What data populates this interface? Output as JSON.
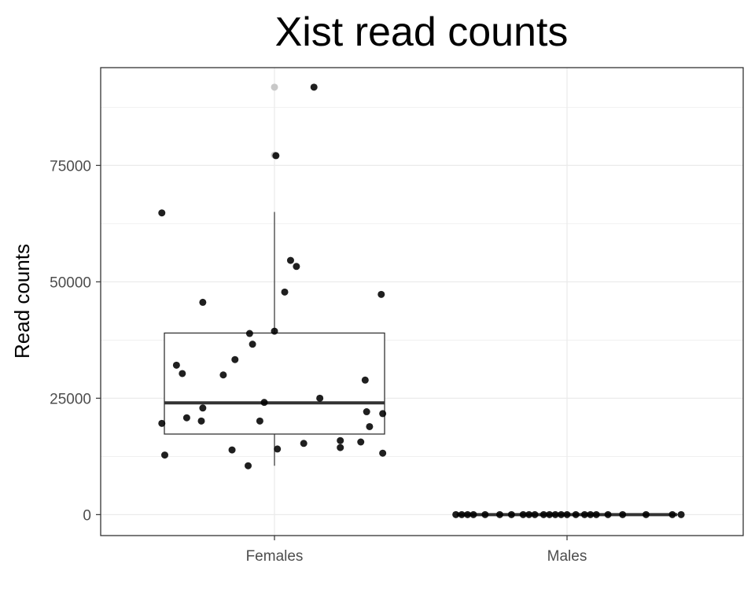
{
  "chart_data": {
    "type": "boxplot",
    "title": "Xist read counts",
    "xlabel": "",
    "ylabel": "Read counts",
    "categories": [
      "Females",
      "Males"
    ],
    "yticks": [
      0,
      25000,
      50000,
      75000
    ],
    "ytick_labels": [
      "0",
      "25000",
      "50000",
      "75000"
    ],
    "ylim": [
      -4500,
      96000
    ],
    "grid": true,
    "legend": "none",
    "colors": {
      "background": "#ffffff",
      "grid": "#ebebeb",
      "border": "#333333",
      "box": "#333333",
      "point": "#000000"
    },
    "boxes": [
      {
        "category": "Females",
        "q1": 17300,
        "median": 24000,
        "q3": 39000,
        "whisker_low": 10500,
        "whisker_high": 65000,
        "outliers": [
          77200,
          91800
        ]
      },
      {
        "category": "Males",
        "q1": 0,
        "median": 0,
        "q3": 50,
        "whisker_low": 0,
        "whisker_high": 80,
        "outliers": []
      }
    ],
    "points": [
      {
        "category": "Females",
        "jitter": -0.385,
        "value": 64800
      },
      {
        "category": "Females",
        "jitter": 0.135,
        "value": 91800
      },
      {
        "category": "Females",
        "jitter": 0.005,
        "value": 77100
      },
      {
        "category": "Females",
        "jitter": 0.055,
        "value": 54600
      },
      {
        "category": "Females",
        "jitter": 0.075,
        "value": 53300
      },
      {
        "category": "Females",
        "jitter": 0.035,
        "value": 47800
      },
      {
        "category": "Females",
        "jitter": 0.365,
        "value": 47300
      },
      {
        "category": "Females",
        "jitter": -0.245,
        "value": 45600
      },
      {
        "category": "Females",
        "jitter": 0.0,
        "value": 39400
      },
      {
        "category": "Females",
        "jitter": -0.085,
        "value": 38900
      },
      {
        "category": "Females",
        "jitter": -0.075,
        "value": 36600
      },
      {
        "category": "Females",
        "jitter": -0.135,
        "value": 33300
      },
      {
        "category": "Females",
        "jitter": -0.335,
        "value": 32100
      },
      {
        "category": "Females",
        "jitter": -0.315,
        "value": 30300
      },
      {
        "category": "Females",
        "jitter": -0.175,
        "value": 30000
      },
      {
        "category": "Females",
        "jitter": 0.31,
        "value": 28900
      },
      {
        "category": "Females",
        "jitter": 0.155,
        "value": 25000
      },
      {
        "category": "Females",
        "jitter": -0.035,
        "value": 24100
      },
      {
        "category": "Females",
        "jitter": -0.245,
        "value": 22900
      },
      {
        "category": "Females",
        "jitter": 0.315,
        "value": 22100
      },
      {
        "category": "Females",
        "jitter": 0.37,
        "value": 21700
      },
      {
        "category": "Females",
        "jitter": -0.3,
        "value": 20800
      },
      {
        "category": "Females",
        "jitter": -0.25,
        "value": 20100
      },
      {
        "category": "Females",
        "jitter": -0.05,
        "value": 20100
      },
      {
        "category": "Females",
        "jitter": -0.385,
        "value": 19600
      },
      {
        "category": "Females",
        "jitter": 0.325,
        "value": 18900
      },
      {
        "category": "Females",
        "jitter": 0.225,
        "value": 15900
      },
      {
        "category": "Females",
        "jitter": 0.295,
        "value": 15600
      },
      {
        "category": "Females",
        "jitter": 0.1,
        "value": 15300
      },
      {
        "category": "Females",
        "jitter": 0.225,
        "value": 14400
      },
      {
        "category": "Females",
        "jitter": 0.01,
        "value": 14100
      },
      {
        "category": "Females",
        "jitter": -0.145,
        "value": 13900
      },
      {
        "category": "Females",
        "jitter": 0.37,
        "value": 13200
      },
      {
        "category": "Females",
        "jitter": -0.375,
        "value": 12800
      },
      {
        "category": "Females",
        "jitter": -0.09,
        "value": 10500
      },
      {
        "category": "Males",
        "jitter": -0.38,
        "value": 0
      },
      {
        "category": "Males",
        "jitter": -0.36,
        "value": 0
      },
      {
        "category": "Males",
        "jitter": -0.34,
        "value": 0
      },
      {
        "category": "Males",
        "jitter": -0.32,
        "value": 0
      },
      {
        "category": "Males",
        "jitter": -0.28,
        "value": 0
      },
      {
        "category": "Males",
        "jitter": -0.23,
        "value": 0
      },
      {
        "category": "Males",
        "jitter": -0.19,
        "value": 0
      },
      {
        "category": "Males",
        "jitter": -0.15,
        "value": 0
      },
      {
        "category": "Males",
        "jitter": -0.13,
        "value": 0
      },
      {
        "category": "Males",
        "jitter": -0.11,
        "value": 0
      },
      {
        "category": "Males",
        "jitter": -0.08,
        "value": 0
      },
      {
        "category": "Males",
        "jitter": -0.06,
        "value": 0
      },
      {
        "category": "Males",
        "jitter": -0.04,
        "value": 0
      },
      {
        "category": "Males",
        "jitter": -0.02,
        "value": 0
      },
      {
        "category": "Males",
        "jitter": 0.0,
        "value": 0
      },
      {
        "category": "Males",
        "jitter": 0.03,
        "value": 0
      },
      {
        "category": "Males",
        "jitter": 0.06,
        "value": 0
      },
      {
        "category": "Males",
        "jitter": 0.08,
        "value": 0
      },
      {
        "category": "Males",
        "jitter": 0.1,
        "value": 0
      },
      {
        "category": "Males",
        "jitter": 0.14,
        "value": 0
      },
      {
        "category": "Males",
        "jitter": 0.19,
        "value": 0
      },
      {
        "category": "Males",
        "jitter": 0.27,
        "value": 0
      },
      {
        "category": "Males",
        "jitter": 0.36,
        "value": 0
      },
      {
        "category": "Males",
        "jitter": 0.39,
        "value": 0
      }
    ]
  }
}
